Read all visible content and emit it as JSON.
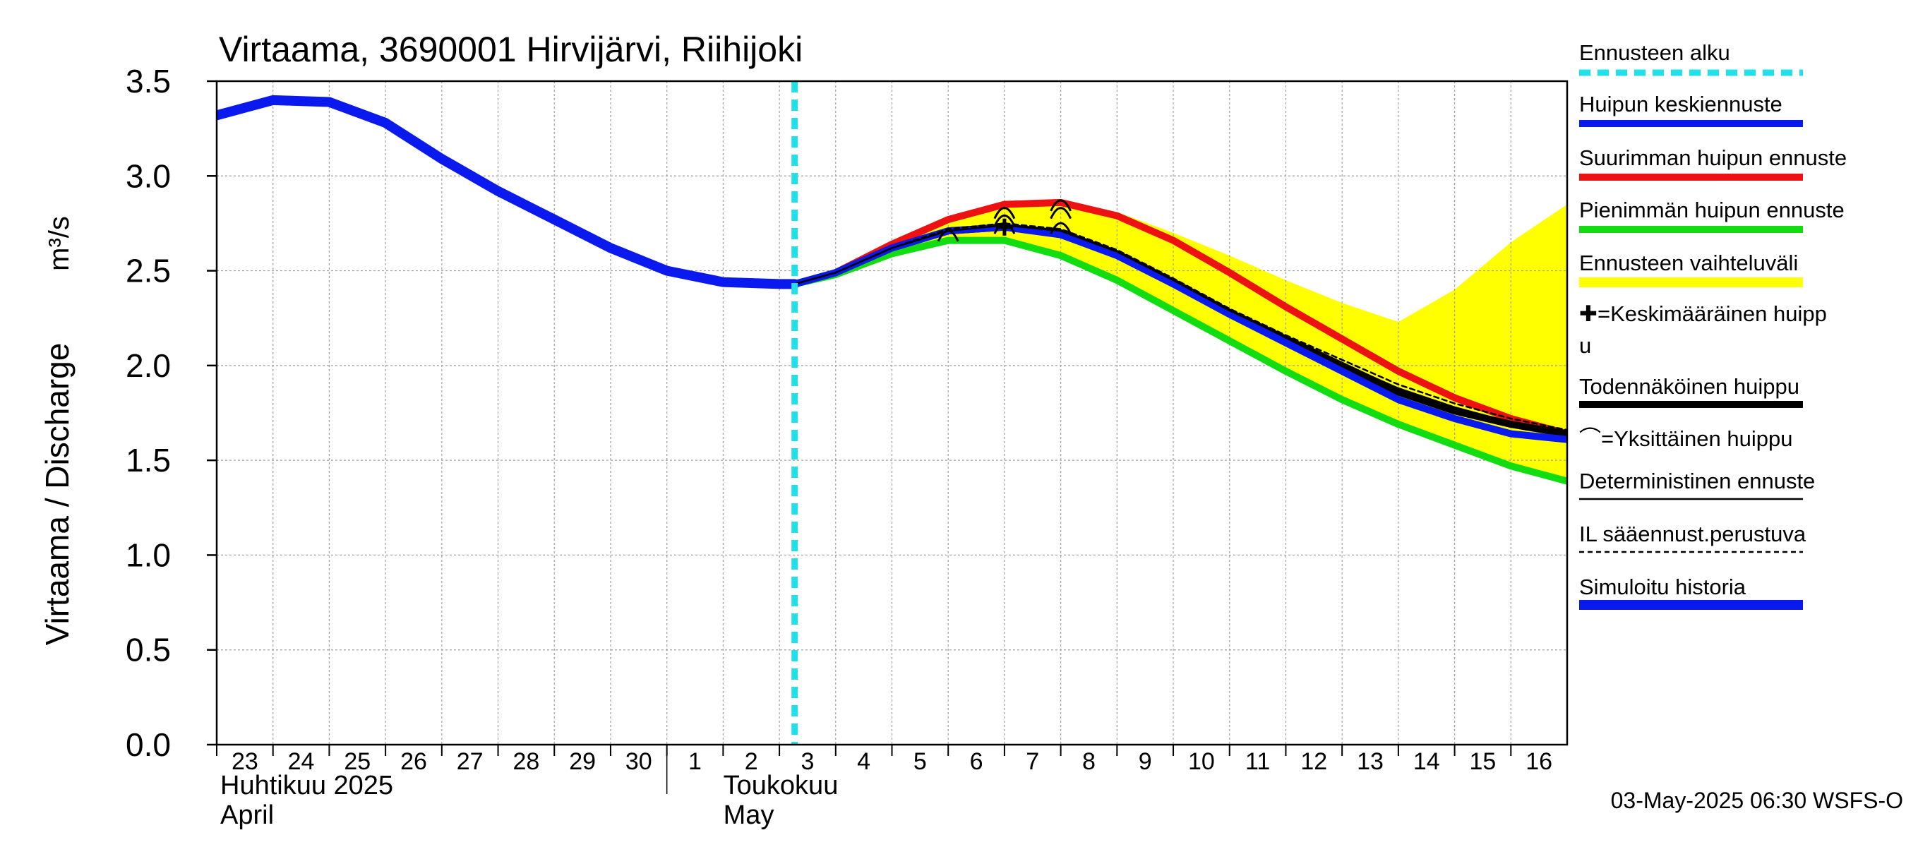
{
  "chart_data": {
    "type": "line",
    "title": "Virtaama, 3690001 Hirvijärvi, Riihijoki",
    "ylabel": "Virtaama / Discharge",
    "yunit": "m³/s",
    "ylim": [
      0,
      3.5
    ],
    "yticks": [
      "0.0",
      "0.5",
      "1.0",
      "1.5",
      "2.0",
      "2.5",
      "3.0",
      "3.5"
    ],
    "x_range": [
      "2025-04-23",
      "2025-05-17"
    ],
    "day_labels": [
      "23",
      "24",
      "25",
      "26",
      "27",
      "28",
      "29",
      "30",
      "1",
      "2",
      "3",
      "4",
      "5",
      "6",
      "7",
      "8",
      "9",
      "10",
      "11",
      "12",
      "13",
      "14",
      "15",
      "16"
    ],
    "month_labels": [
      {
        "fi": "Huhtikuu  2025",
        "en": "April",
        "start": "2025-04-23"
      },
      {
        "fi": "Toukokuu",
        "en": "May",
        "start": "2025-05-01"
      }
    ],
    "grid": true,
    "legend_placement": "right",
    "forecast_start": "2025-05-03 06:30",
    "timestamp": "03-May-2025 06:30 WSFS-O",
    "legend": [
      {
        "label": "Ennusteen alku",
        "style": "dashed",
        "color": "#22e0e8"
      },
      {
        "label": "Huipun keskiennuste",
        "style": "line",
        "color": "#0a1aee"
      },
      {
        "label": "Suurimman huipun ennuste",
        "style": "line",
        "color": "#ee1111"
      },
      {
        "label": "Pienimmän huipun ennuste",
        "style": "line",
        "color": "#11dd11"
      },
      {
        "label": "Ennusteen vaihteluväli",
        "style": "band",
        "color": "#ffff00"
      },
      {
        "label_lines": [
          "✚=Keskimääräinen huipp",
          "u"
        ],
        "style": "none",
        "color": "#000000"
      },
      {
        "label": "Todennäköinen huippu",
        "style": "line",
        "color": "#000000"
      },
      {
        "label": "⌒=Yksittäinen huippu",
        "style": "none",
        "color": "#000000"
      },
      {
        "label": "Deterministinen ennuste",
        "style": "thin",
        "color": "#000000"
      },
      {
        "label": "IL sääennust.perustuva",
        "style": "thin-dashed",
        "color": "#000000"
      },
      {
        "label": "Simuloitu historia",
        "style": "line",
        "color": "#0a1aee"
      }
    ],
    "series": [
      {
        "name": "Simuloitu historia",
        "color": "#0a1aee",
        "points": [
          [
            "2025-04-23 00:00",
            3.32
          ],
          [
            "2025-04-24 00:00",
            3.4
          ],
          [
            "2025-04-25 00:00",
            3.39
          ],
          [
            "2025-04-26 00:00",
            3.28
          ],
          [
            "2025-04-27 00:00",
            3.09
          ],
          [
            "2025-04-28 00:00",
            2.92
          ],
          [
            "2025-04-29 00:00",
            2.77
          ],
          [
            "2025-04-30 00:00",
            2.62
          ],
          [
            "2025-05-01 00:00",
            2.5
          ],
          [
            "2025-05-02 00:00",
            2.44
          ],
          [
            "2025-05-03 00:00",
            2.43
          ],
          [
            "2025-05-03 06:30",
            2.43
          ]
        ]
      },
      {
        "name": "Ennusteen vaihteluväli (yläraja)",
        "color": "#ffff00",
        "points": [
          [
            "2025-05-03 06:30",
            2.43
          ],
          [
            "2025-05-04 00:00",
            2.49
          ],
          [
            "2025-05-05 00:00",
            2.64
          ],
          [
            "2025-05-06 00:00",
            2.78
          ],
          [
            "2025-05-07 00:00",
            2.86
          ],
          [
            "2025-05-08 00:00",
            2.87
          ],
          [
            "2025-05-09 00:00",
            2.81
          ],
          [
            "2025-05-10 00:00",
            2.7
          ],
          [
            "2025-05-11 00:00",
            2.58
          ],
          [
            "2025-05-12 00:00",
            2.45
          ],
          [
            "2025-05-13 00:00",
            2.33
          ],
          [
            "2025-05-14 00:00",
            2.23
          ],
          [
            "2025-05-15 00:00",
            2.4
          ],
          [
            "2025-05-16 00:00",
            2.65
          ],
          [
            "2025-05-17 00:00",
            2.85
          ]
        ]
      },
      {
        "name": "Ennusteen vaihteluväli (alaraja)",
        "color": "#ffff00",
        "points": [
          [
            "2025-05-03 06:30",
            2.43
          ],
          [
            "2025-05-04 00:00",
            2.48
          ],
          [
            "2025-05-05 00:00",
            2.59
          ],
          [
            "2025-05-06 00:00",
            2.66
          ],
          [
            "2025-05-07 00:00",
            2.66
          ],
          [
            "2025-05-08 00:00",
            2.58
          ],
          [
            "2025-05-09 00:00",
            2.45
          ],
          [
            "2025-05-10 00:00",
            2.29
          ],
          [
            "2025-05-11 00:00",
            2.13
          ],
          [
            "2025-05-12 00:00",
            1.97
          ],
          [
            "2025-05-13 00:00",
            1.82
          ],
          [
            "2025-05-14 00:00",
            1.69
          ],
          [
            "2025-05-15 00:00",
            1.58
          ],
          [
            "2025-05-16 00:00",
            1.47
          ],
          [
            "2025-05-17 00:00",
            1.39
          ]
        ]
      },
      {
        "name": "Suurimman huipun ennuste",
        "color": "#ee1111",
        "points": [
          [
            "2025-05-03 06:30",
            2.43
          ],
          [
            "2025-05-04 00:00",
            2.49
          ],
          [
            "2025-05-05 00:00",
            2.64
          ],
          [
            "2025-05-06 00:00",
            2.77
          ],
          [
            "2025-05-07 00:00",
            2.85
          ],
          [
            "2025-05-08 00:00",
            2.86
          ],
          [
            "2025-05-09 00:00",
            2.79
          ],
          [
            "2025-05-10 00:00",
            2.66
          ],
          [
            "2025-05-11 00:00",
            2.49
          ],
          [
            "2025-05-12 00:00",
            2.31
          ],
          [
            "2025-05-13 00:00",
            2.14
          ],
          [
            "2025-05-14 00:00",
            1.97
          ],
          [
            "2025-05-15 00:00",
            1.83
          ],
          [
            "2025-05-16 00:00",
            1.72
          ],
          [
            "2025-05-17 00:00",
            1.64
          ]
        ]
      },
      {
        "name": "Pienimmän huipun ennuste",
        "color": "#11dd11",
        "points": [
          [
            "2025-05-03 06:30",
            2.43
          ],
          [
            "2025-05-04 00:00",
            2.48
          ],
          [
            "2025-05-05 00:00",
            2.59
          ],
          [
            "2025-05-06 00:00",
            2.66
          ],
          [
            "2025-05-07 00:00",
            2.66
          ],
          [
            "2025-05-08 00:00",
            2.58
          ],
          [
            "2025-05-09 00:00",
            2.45
          ],
          [
            "2025-05-10 00:00",
            2.29
          ],
          [
            "2025-05-11 00:00",
            2.13
          ],
          [
            "2025-05-12 00:00",
            1.97
          ],
          [
            "2025-05-13 00:00",
            1.82
          ],
          [
            "2025-05-14 00:00",
            1.69
          ],
          [
            "2025-05-15 00:00",
            1.58
          ],
          [
            "2025-05-16 00:00",
            1.47
          ],
          [
            "2025-05-17 00:00",
            1.39
          ]
        ]
      },
      {
        "name": "Todennäköinen huippu",
        "color": "#000000",
        "points": [
          [
            "2025-05-03 06:30",
            2.43
          ],
          [
            "2025-05-04 00:00",
            2.49
          ],
          [
            "2025-05-05 00:00",
            2.62
          ],
          [
            "2025-05-06 00:00",
            2.71
          ],
          [
            "2025-05-07 00:00",
            2.73
          ],
          [
            "2025-05-08 00:00",
            2.7
          ],
          [
            "2025-05-09 00:00",
            2.59
          ],
          [
            "2025-05-10 00:00",
            2.44
          ],
          [
            "2025-05-11 00:00",
            2.28
          ],
          [
            "2025-05-12 00:00",
            2.14
          ],
          [
            "2025-05-13 00:00",
            2.0
          ],
          [
            "2025-05-14 00:00",
            1.86
          ],
          [
            "2025-05-15 00:00",
            1.76
          ],
          [
            "2025-05-16 00:00",
            1.69
          ],
          [
            "2025-05-17 00:00",
            1.64
          ]
        ]
      },
      {
        "name": "Huipun keskiennuste",
        "color": "#0a1aee",
        "points": [
          [
            "2025-05-03 06:30",
            2.43
          ],
          [
            "2025-05-04 00:00",
            2.49
          ],
          [
            "2025-05-05 00:00",
            2.62
          ],
          [
            "2025-05-06 00:00",
            2.71
          ],
          [
            "2025-05-07 00:00",
            2.73
          ],
          [
            "2025-05-08 00:00",
            2.69
          ],
          [
            "2025-05-09 00:00",
            2.58
          ],
          [
            "2025-05-10 00:00",
            2.43
          ],
          [
            "2025-05-11 00:00",
            2.27
          ],
          [
            "2025-05-12 00:00",
            2.12
          ],
          [
            "2025-05-13 00:00",
            1.97
          ],
          [
            "2025-05-14 00:00",
            1.82
          ],
          [
            "2025-05-15 00:00",
            1.72
          ],
          [
            "2025-05-16 00:00",
            1.64
          ],
          [
            "2025-05-17 00:00",
            1.61
          ]
        ]
      },
      {
        "name": "Deterministinen ennuste",
        "color": "#000000",
        "points": [
          [
            "2025-05-03 06:30",
            2.43
          ],
          [
            "2025-05-04 00:00",
            2.49
          ],
          [
            "2025-05-05 00:00",
            2.62
          ],
          [
            "2025-05-06 00:00",
            2.71
          ],
          [
            "2025-05-07 00:00",
            2.74
          ],
          [
            "2025-05-08 00:00",
            2.71
          ],
          [
            "2025-05-09 00:00",
            2.6
          ],
          [
            "2025-05-10 00:00",
            2.45
          ],
          [
            "2025-05-11 00:00",
            2.29
          ],
          [
            "2025-05-12 00:00",
            2.15
          ],
          [
            "2025-05-13 00:00",
            2.01
          ],
          [
            "2025-05-14 00:00",
            1.88
          ],
          [
            "2025-05-15 00:00",
            1.78
          ],
          [
            "2025-05-16 00:00",
            1.7
          ],
          [
            "2025-05-17 00:00",
            1.64
          ]
        ]
      },
      {
        "name": "IL sääennust.perustuva",
        "color": "#000000",
        "points": [
          [
            "2025-05-03 06:30",
            2.43
          ],
          [
            "2025-05-04 00:00",
            2.49
          ],
          [
            "2025-05-05 00:00",
            2.62
          ],
          [
            "2025-05-06 00:00",
            2.72
          ],
          [
            "2025-05-07 00:00",
            2.75
          ],
          [
            "2025-05-08 00:00",
            2.72
          ],
          [
            "2025-05-09 00:00",
            2.61
          ],
          [
            "2025-05-10 00:00",
            2.46
          ],
          [
            "2025-05-11 00:00",
            2.3
          ],
          [
            "2025-05-12 00:00",
            2.16
          ],
          [
            "2025-05-13 00:00",
            2.03
          ],
          [
            "2025-05-14 00:00",
            1.9
          ],
          [
            "2025-05-15 00:00",
            1.8
          ],
          [
            "2025-05-16 00:00",
            1.72
          ],
          [
            "2025-05-17 00:00",
            1.66
          ]
        ]
      }
    ],
    "peak_markers": {
      "mean_peak": [
        [
          "2025-05-07 00:00",
          2.73
        ]
      ],
      "single_peaks": [
        [
          "2025-05-06 00:00",
          2.7
        ],
        [
          "2025-05-07 00:00",
          2.74
        ],
        [
          "2025-05-07 00:00",
          2.78
        ],
        [
          "2025-05-07 00:00",
          2.82
        ],
        [
          "2025-05-08 00:00",
          2.74
        ],
        [
          "2025-05-08 00:00",
          2.82
        ],
        [
          "2025-05-08 00:00",
          2.86
        ]
      ]
    }
  }
}
